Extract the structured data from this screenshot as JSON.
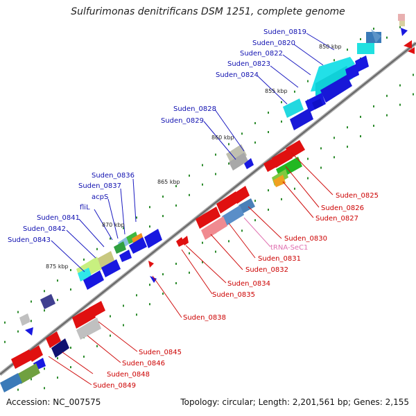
{
  "title": "Sulfurimonas denitrificans DSM 1251, complete genome",
  "accession": "Accession: NC_007575",
  "summary": "Topology: circular; Length: 2,201,561 bp; Genes: 2,155",
  "colors": {
    "backbone": "#777777",
    "forward_label": "#1010b0",
    "reverse_label": "#cc0000",
    "rna_label": "#e070b0",
    "tick": "#2a8a2a"
  },
  "kbp_markers": [
    "850 kbp",
    "855 kbp",
    "860 kbp",
    "865 kbp",
    "870 kbp",
    "875 kbp"
  ],
  "forward_labels": [
    "Suden_0819",
    "Suden_0820",
    "Suden_0822",
    "Suden_0823",
    "Suden_0824",
    "Suden_0828",
    "Suden_0829",
    "Suden_0836",
    "Suden_0837",
    "acpS",
    "fliL",
    "Suden_0841",
    "Suden_0842",
    "Suden_0843"
  ],
  "reverse_labels": [
    "Suden_0825",
    "Suden_0826",
    "Suden_0827",
    "Suden_0830",
    "Suden_0831",
    "Suden_0832",
    "Suden_0834",
    "Suden_0835",
    "Suden_0838",
    "Suden_0845",
    "Suden_0846",
    "Suden_0848",
    "Suden_0849"
  ],
  "rna_labels": [
    "tRNA-SeC1"
  ]
}
